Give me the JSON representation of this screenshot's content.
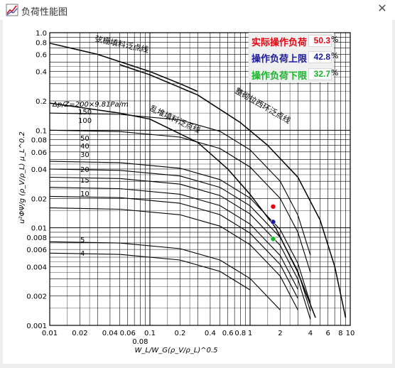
{
  "window": {
    "title": "负荷性能图",
    "close_label": "✕"
  },
  "legend": {
    "actual": {
      "label": "实际操作负荷",
      "value": "50.3",
      "unit": "%",
      "color": "#e8000f"
    },
    "upper": {
      "label": "操作负荷上限",
      "value": "42.8",
      "unit": "%",
      "color": "#1a1a9a"
    },
    "lower": {
      "label": "操作负荷下限",
      "value": "32.7",
      "unit": "%",
      "color": "#17b52a"
    }
  },
  "chart": {
    "y_ticks": [
      "1.0",
      "0.8",
      "0.6",
      "0.4",
      "0.2",
      "0.1",
      "0.08",
      "0.06",
      "0.04",
      "0.02",
      "0.01",
      "0.008",
      "0.006",
      "0.004",
      "0.002",
      "0.001"
    ],
    "x_ticks_top": [
      "0.01",
      "0.02",
      "0.04",
      "0.06",
      "0.1",
      "0.2",
      "0.4",
      "0.6",
      "0.8",
      "1",
      "2",
      "4",
      "6",
      "8",
      "10"
    ],
    "x_tick_extra": "0.08",
    "x_axis_label": "W_L/W_G(ρ_V/ρ_L)^0.5",
    "y_axis_label": "u²ΦΨ/g (ρ_V/ρ_L) μ_L^0.2",
    "curve_labels": {
      "structured_flood": "弦栅填料泛点线",
      "random_flood": "乱堆填料泛点线",
      "ordered_flood": "整砌拉西环泛点线",
      "dp_title": "Δp/Z=200×9.81Pa/m",
      "dp": [
        "150",
        "100",
        "50",
        "40",
        "30",
        "20",
        "15",
        "10",
        "5",
        "4"
      ]
    },
    "operating_points": [
      {
        "name": "actual",
        "x": 1.7,
        "y": 0.0165,
        "color": "#e8000f"
      },
      {
        "name": "upper",
        "x": 1.7,
        "y": 0.0115,
        "color": "#1a1a9a"
      },
      {
        "name": "lower",
        "x": 1.7,
        "y": 0.0077,
        "color": "#17b52a"
      }
    ]
  }
}
